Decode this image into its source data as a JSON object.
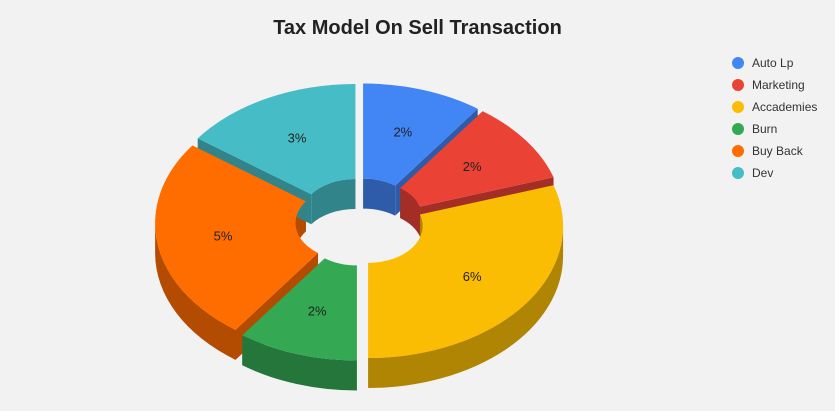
{
  "chart_data": {
    "type": "pie",
    "title": "Tax Model On Sell Transaction",
    "legend_position": "right",
    "slices": [
      {
        "name": "Auto Lp",
        "value": 2,
        "label": "2%",
        "color": "#4285f4",
        "side": "#2e5cab"
      },
      {
        "name": "Marketing",
        "value": 2,
        "label": "2%",
        "color": "#ea4335",
        "side": "#a32e25"
      },
      {
        "name": "Accademies",
        "value": 6,
        "label": "6%",
        "color": "#fbbc04",
        "side": "#b08503"
      },
      {
        "name": "Burn",
        "value": 2,
        "label": "2%",
        "color": "#34a853",
        "side": "#24763a"
      },
      {
        "name": "Buy Back",
        "value": 5,
        "label": "5%",
        "color": "#ff6d01",
        "side": "#b34c01"
      },
      {
        "name": "Dev",
        "value": 3,
        "label": "3%",
        "color": "#46bdc6",
        "side": "#31848a"
      }
    ]
  }
}
